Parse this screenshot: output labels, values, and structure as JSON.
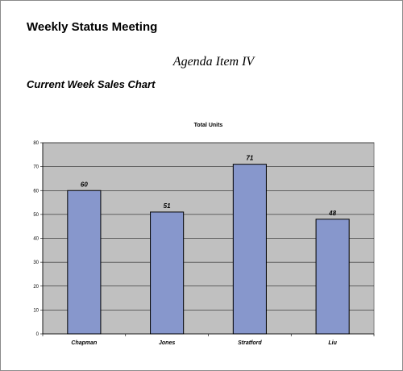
{
  "document": {
    "title": "Weekly Status Meeting",
    "agenda": "Agenda Item IV",
    "section": "Current Week Sales Chart"
  },
  "colors": {
    "bar_fill": "#8797cc",
    "bar_stroke": "#000000",
    "plot_bg": "#c0c0c0",
    "grid": "#000000"
  },
  "chart_data": {
    "type": "bar",
    "title": "Total Units",
    "xlabel": "",
    "ylabel": "",
    "categories": [
      "Chapman",
      "Jones",
      "Stratford",
      "Liu"
    ],
    "values": [
      60,
      51,
      71,
      48
    ],
    "ylim": [
      0,
      80
    ],
    "yticks": [
      0,
      10,
      20,
      30,
      40,
      50,
      60,
      70,
      80
    ],
    "grid": true,
    "legend": "none",
    "data_labels": true
  }
}
